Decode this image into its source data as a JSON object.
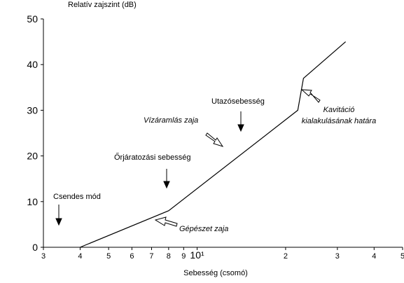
{
  "chart_data": {
    "type": "line",
    "ylabel": "Relatív zajszint (dB)",
    "xlabel": "Sebesség (csomó)",
    "x": [
      4,
      8,
      22,
      23,
      32
    ],
    "series": [
      {
        "name": null,
        "color": "#000000",
        "values": [
          0,
          8,
          30,
          37,
          45
        ]
      }
    ],
    "xscale": "log",
    "xlim": [
      3,
      50
    ],
    "xticks": [
      3,
      4,
      5,
      6,
      7,
      8,
      9,
      {
        "value": 10,
        "label": "10¹"
      },
      {
        "value": 20,
        "label": "2"
      },
      {
        "value": 30,
        "label": "3"
      },
      {
        "value": 40,
        "label": "4"
      },
      {
        "value": 50,
        "label": "5"
      }
    ],
    "ylim": [
      0,
      50
    ],
    "yticks": [
      0,
      10,
      20,
      30,
      40,
      50
    ],
    "annotations": [
      "Csendes mód",
      "Őrjáratozási sebesség",
      "Vízáramlás zaja",
      "Utazósebesség",
      "Kavitáció",
      "kialakulásának határa",
      "Gépészet zaja"
    ]
  }
}
